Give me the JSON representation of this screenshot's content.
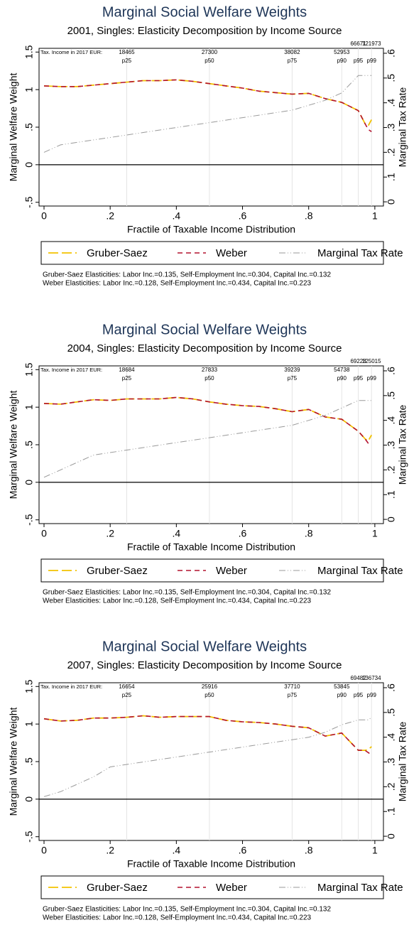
{
  "chart_data": [
    {
      "type": "line",
      "title": "Marginal Social Welfare Weights",
      "subtitle": "2001, Singles: Elasticity Decomposition by Income Source",
      "xlabel": "Fractile of  Taxable Income Distribution",
      "ylabel": "Marginal Welfare Weight",
      "y2label": "Marginal Tax Rate",
      "income_label": "Tax. Income in 2017 EUR:",
      "percentiles": [
        {
          "x": 0.25,
          "label": "p25",
          "income": 18465
        },
        {
          "x": 0.5,
          "label": "p50",
          "income": 27300
        },
        {
          "x": 0.75,
          "label": "p75",
          "income": 38082
        },
        {
          "x": 0.9,
          "label": "p90",
          "income": 52953
        },
        {
          "x": 0.95,
          "label": "p95",
          "income": 66671
        },
        {
          "x": 0.99,
          "label": "p99",
          "income": 121973
        }
      ],
      "x": [
        0,
        0.05,
        0.1,
        0.15,
        0.2,
        0.25,
        0.3,
        0.35,
        0.4,
        0.45,
        0.5,
        0.55,
        0.6,
        0.65,
        0.7,
        0.75,
        0.8,
        0.85,
        0.9,
        0.95,
        0.97,
        0.98,
        0.99
      ],
      "series": [
        {
          "name": "Gruber-Saez",
          "color": "#f2c200",
          "values": [
            1.05,
            1.04,
            1.04,
            1.06,
            1.08,
            1.1,
            1.12,
            1.12,
            1.13,
            1.11,
            1.08,
            1.05,
            1.02,
            0.98,
            0.96,
            0.94,
            0.95,
            0.88,
            0.83,
            0.72,
            0.55,
            0.52,
            0.6
          ]
        },
        {
          "name": "Weber",
          "color": "#b3122e",
          "values": [
            1.05,
            1.04,
            1.04,
            1.06,
            1.08,
            1.1,
            1.12,
            1.12,
            1.13,
            1.11,
            1.08,
            1.05,
            1.02,
            0.98,
            0.96,
            0.94,
            0.95,
            0.88,
            0.83,
            0.72,
            0.55,
            0.47,
            0.44
          ]
        },
        {
          "name": "Marginal Tax Rate",
          "color": "#999999",
          "axis": "y2",
          "values": [
            0.2,
            0.23,
            0.24,
            0.25,
            0.26,
            0.27,
            0.28,
            0.29,
            0.3,
            0.31,
            0.32,
            0.33,
            0.34,
            0.35,
            0.36,
            0.37,
            0.39,
            0.41,
            0.44,
            0.51,
            0.51,
            0.51,
            0.51
          ]
        }
      ],
      "reference_line": 0,
      "xlim": [
        -0.015,
        1.026
      ],
      "xticks": [
        0,
        {
          "value": 0.2,
          "label": ".2"
        },
        {
          "value": 0.4,
          "label": ".4"
        },
        {
          "value": 0.6,
          "label": ".6"
        },
        {
          "value": 0.8,
          "label": ".8"
        },
        1
      ],
      "ylim": [
        -0.55,
        1.55
      ],
      "yticks": [
        {
          "value": -0.5,
          "label": "-.5"
        },
        0,
        {
          "value": 0.5,
          "label": ".5"
        },
        1,
        1.5
      ],
      "y2lim": [
        -0.017,
        0.62
      ],
      "y2ticks": [
        0,
        {
          "value": 0.1,
          "label": ".1"
        },
        {
          "value": 0.2,
          "label": ".2"
        },
        {
          "value": 0.3,
          "label": ".3"
        },
        {
          "value": 0.4,
          "label": ".4"
        },
        {
          "value": 0.5,
          "label": ".5"
        },
        {
          "value": 0.6,
          "label": ".6"
        }
      ],
      "notes": [
        "Gruber-Saez Elasticities: Labor Inc.=0.135, Self-Employment Inc.=0.304, Capital Inc.=0.132",
        "Weber Elasticities: Labor Inc.=0.128, Self-Employment Inc.=0.434, Capital Inc.=0.223"
      ]
    },
    {
      "type": "line",
      "title": "Marginal Social Welfare Weights",
      "subtitle": "2004, Singles: Elasticity Decomposition by Income Source",
      "xlabel": "Fractile of  Taxable Income Distribution",
      "ylabel": "Marginal Welfare Weight",
      "y2label": "Marginal Tax Rate",
      "income_label": "Tax. Income in 2017 EUR:",
      "percentiles": [
        {
          "x": 0.25,
          "label": "p25",
          "income": 18684
        },
        {
          "x": 0.5,
          "label": "p50",
          "income": 27833
        },
        {
          "x": 0.75,
          "label": "p75",
          "income": 39239
        },
        {
          "x": 0.9,
          "label": "p90",
          "income": 54738
        },
        {
          "x": 0.95,
          "label": "p95",
          "income": 69228
        },
        {
          "x": 0.99,
          "label": "p99",
          "income": 125015
        }
      ],
      "x": [
        0,
        0.05,
        0.1,
        0.15,
        0.2,
        0.25,
        0.3,
        0.35,
        0.4,
        0.45,
        0.5,
        0.55,
        0.6,
        0.65,
        0.7,
        0.75,
        0.8,
        0.85,
        0.9,
        0.95,
        0.97,
        0.98,
        0.99
      ],
      "series": [
        {
          "name": "Gruber-Saez",
          "color": "#f2c200",
          "values": [
            1.05,
            1.04,
            1.07,
            1.1,
            1.09,
            1.11,
            1.11,
            1.11,
            1.13,
            1.11,
            1.07,
            1.04,
            1.02,
            1.01,
            0.98,
            0.94,
            0.97,
            0.87,
            0.84,
            0.68,
            0.58,
            0.55,
            0.63
          ]
        },
        {
          "name": "Weber",
          "color": "#b3122e",
          "values": [
            1.05,
            1.04,
            1.07,
            1.1,
            1.09,
            1.11,
            1.11,
            1.11,
            1.13,
            1.11,
            1.07,
            1.04,
            1.02,
            1.01,
            0.98,
            0.94,
            0.97,
            0.87,
            0.84,
            0.68,
            0.58,
            0.52,
            0.51
          ]
        },
        {
          "name": "Marginal Tax Rate",
          "color": "#999999",
          "axis": "y2",
          "values": [
            0.17,
            0.2,
            0.23,
            0.26,
            0.27,
            0.28,
            0.29,
            0.3,
            0.31,
            0.32,
            0.33,
            0.34,
            0.35,
            0.36,
            0.37,
            0.38,
            0.4,
            0.42,
            0.45,
            0.48,
            0.48,
            0.48,
            0.48
          ]
        }
      ],
      "reference_line": 0,
      "xlim": [
        -0.015,
        1.026
      ],
      "xticks": [
        0,
        {
          "value": 0.2,
          "label": ".2"
        },
        {
          "value": 0.4,
          "label": ".4"
        },
        {
          "value": 0.6,
          "label": ".6"
        },
        {
          "value": 0.8,
          "label": ".8"
        },
        1
      ],
      "ylim": [
        -0.55,
        1.55
      ],
      "yticks": [
        {
          "value": -0.5,
          "label": "-.5"
        },
        0,
        {
          "value": 0.5,
          "label": ".5"
        },
        1,
        1.5
      ],
      "y2lim": [
        -0.017,
        0.62
      ],
      "y2ticks": [
        0,
        {
          "value": 0.1,
          "label": ".1"
        },
        {
          "value": 0.2,
          "label": ".2"
        },
        {
          "value": 0.3,
          "label": ".3"
        },
        {
          "value": 0.4,
          "label": ".4"
        },
        {
          "value": 0.5,
          "label": ".5"
        },
        {
          "value": 0.6,
          "label": ".6"
        }
      ],
      "notes": [
        "Gruber-Saez Elasticities: Labor Inc.=0.135, Self-Employment Inc.=0.304, Capital Inc.=0.132",
        "Weber Elasticities: Labor Inc.=0.128, Self-Employment Inc.=0.434, Capital Inc.=0.223"
      ]
    },
    {
      "type": "line",
      "title": "Marginal Social Welfare Weights",
      "subtitle": "2007, Singles: Elasticity Decomposition by Income Source",
      "xlabel": "Fractile of  Taxable Income Distribution",
      "ylabel": "Marginal Welfare Weight",
      "y2label": "Marginal Tax Rate",
      "income_label": "Tax. Income in 2017 EUR:",
      "percentiles": [
        {
          "x": 0.25,
          "label": "p25",
          "income": 16654
        },
        {
          "x": 0.5,
          "label": "p50",
          "income": 25916
        },
        {
          "x": 0.75,
          "label": "p75",
          "income": 37710
        },
        {
          "x": 0.9,
          "label": "p90",
          "income": 53845
        },
        {
          "x": 0.95,
          "label": "p95",
          "income": 69482
        },
        {
          "x": 0.99,
          "label": "p99",
          "income": 136734
        }
      ],
      "x": [
        0,
        0.05,
        0.1,
        0.15,
        0.2,
        0.25,
        0.3,
        0.35,
        0.4,
        0.45,
        0.5,
        0.55,
        0.6,
        0.65,
        0.7,
        0.75,
        0.8,
        0.85,
        0.9,
        0.95,
        0.97,
        0.98,
        0.99
      ],
      "series": [
        {
          "name": "Gruber-Saez",
          "color": "#f2c200",
          "values": [
            1.07,
            1.04,
            1.05,
            1.08,
            1.08,
            1.09,
            1.11,
            1.09,
            1.1,
            1.1,
            1.1,
            1.05,
            1.03,
            1.02,
            1.0,
            0.97,
            0.95,
            0.84,
            0.88,
            0.65,
            0.65,
            0.66,
            0.7
          ]
        },
        {
          "name": "Weber",
          "color": "#b3122e",
          "values": [
            1.07,
            1.04,
            1.05,
            1.08,
            1.08,
            1.09,
            1.11,
            1.09,
            1.1,
            1.1,
            1.1,
            1.05,
            1.03,
            1.02,
            1.0,
            0.97,
            0.95,
            0.84,
            0.88,
            0.65,
            0.65,
            0.62,
            0.59
          ]
        },
        {
          "name": "Marginal Tax Rate",
          "color": "#999999",
          "axis": "y2",
          "values": [
            0.16,
            0.18,
            0.21,
            0.24,
            0.28,
            0.29,
            0.3,
            0.31,
            0.32,
            0.33,
            0.34,
            0.35,
            0.36,
            0.37,
            0.38,
            0.39,
            0.4,
            0.42,
            0.45,
            0.47,
            0.47,
            0.47,
            0.48
          ]
        }
      ],
      "reference_line": 0,
      "xlim": [
        -0.015,
        1.026
      ],
      "xticks": [
        0,
        {
          "value": 0.2,
          "label": ".2"
        },
        {
          "value": 0.4,
          "label": ".4"
        },
        {
          "value": 0.6,
          "label": ".6"
        },
        {
          "value": 0.8,
          "label": ".8"
        },
        1
      ],
      "ylim": [
        -0.55,
        1.55
      ],
      "yticks": [
        {
          "value": -0.5,
          "label": "-.5"
        },
        0,
        {
          "value": 0.5,
          "label": ".5"
        },
        1,
        1.5
      ],
      "y2lim": [
        -0.017,
        0.62
      ],
      "y2ticks": [
        0,
        {
          "value": 0.1,
          "label": ".1"
        },
        {
          "value": 0.2,
          "label": ".2"
        },
        {
          "value": 0.3,
          "label": ".3"
        },
        {
          "value": 0.4,
          "label": ".4"
        },
        {
          "value": 0.5,
          "label": ".5"
        },
        {
          "value": 0.6,
          "label": ".6"
        }
      ],
      "notes": [
        "Gruber-Saez Elasticities: Labor Inc.=0.135, Self-Employment Inc.=0.304, Capital Inc.=0.132",
        "Weber Elasticities: Labor Inc.=0.128, Self-Employment Inc.=0.434, Capital Inc.=0.223"
      ]
    }
  ]
}
